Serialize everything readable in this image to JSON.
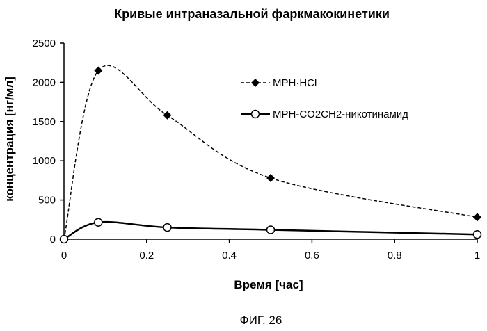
{
  "chart_data": {
    "type": "line",
    "title": "Кривые интраназальной фаркмакокинетики",
    "xlabel": "Время [час]",
    "ylabel": "концентрация [нг/мл]",
    "xlim": [
      0,
      1
    ],
    "ylim": [
      0,
      2500
    ],
    "x_ticks": [
      0,
      0.2,
      0.4,
      0.6,
      0.8,
      1
    ],
    "x_tick_labels": [
      "0",
      "0.2",
      "0.4",
      "0.6",
      "0.8",
      "1"
    ],
    "y_ticks": [
      0,
      500,
      1000,
      1500,
      2000,
      2500
    ],
    "y_tick_labels": [
      "0",
      "500",
      "1000",
      "1500",
      "2000",
      "2500"
    ],
    "grid": false,
    "legend_position": "top-right",
    "series": [
      {
        "name": "MPH·HCl",
        "line_style": "dashed",
        "marker": "diamond-filled",
        "color": "#000000",
        "x": [
          0,
          0.083,
          0.25,
          0.5,
          1
        ],
        "y": [
          0,
          2150,
          1580,
          780,
          280
        ]
      },
      {
        "name": "MPH-CO2CH2-никотинамид",
        "line_style": "solid",
        "marker": "circle-open",
        "color": "#000000",
        "x": [
          0,
          0.083,
          0.25,
          0.5,
          1
        ],
        "y": [
          0,
          215,
          150,
          120,
          60
        ]
      }
    ]
  },
  "caption": "ФИГ. 26"
}
